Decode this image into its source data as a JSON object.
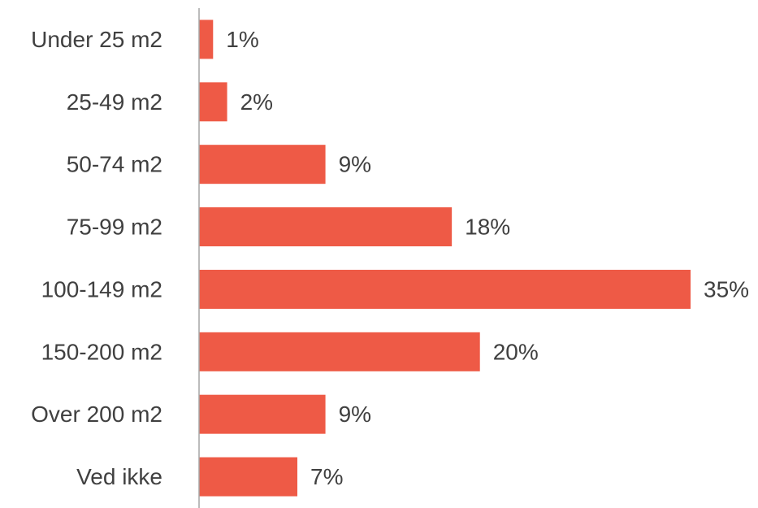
{
  "chart_data": {
    "type": "bar",
    "orientation": "horizontal",
    "categories": [
      "Under 25 m2",
      "25-49 m2",
      "50-74 m2",
      "75-99 m2",
      "100-149 m2",
      "150-200 m2",
      "Over 200 m2",
      "Ved ikke"
    ],
    "values": [
      1,
      2,
      9,
      18,
      35,
      20,
      9,
      7
    ],
    "value_labels": [
      "1%",
      "2%",
      "9%",
      "18%",
      "35%",
      "20%",
      "9%",
      "7%"
    ],
    "unit": "%",
    "title": "",
    "xlabel": "",
    "ylabel": "",
    "xlim": [
      0,
      35
    ],
    "grid": false,
    "legend": "none",
    "colors": {
      "bar": "#EE5A46",
      "axis": "#A6A6A6",
      "text": "#404040"
    }
  }
}
